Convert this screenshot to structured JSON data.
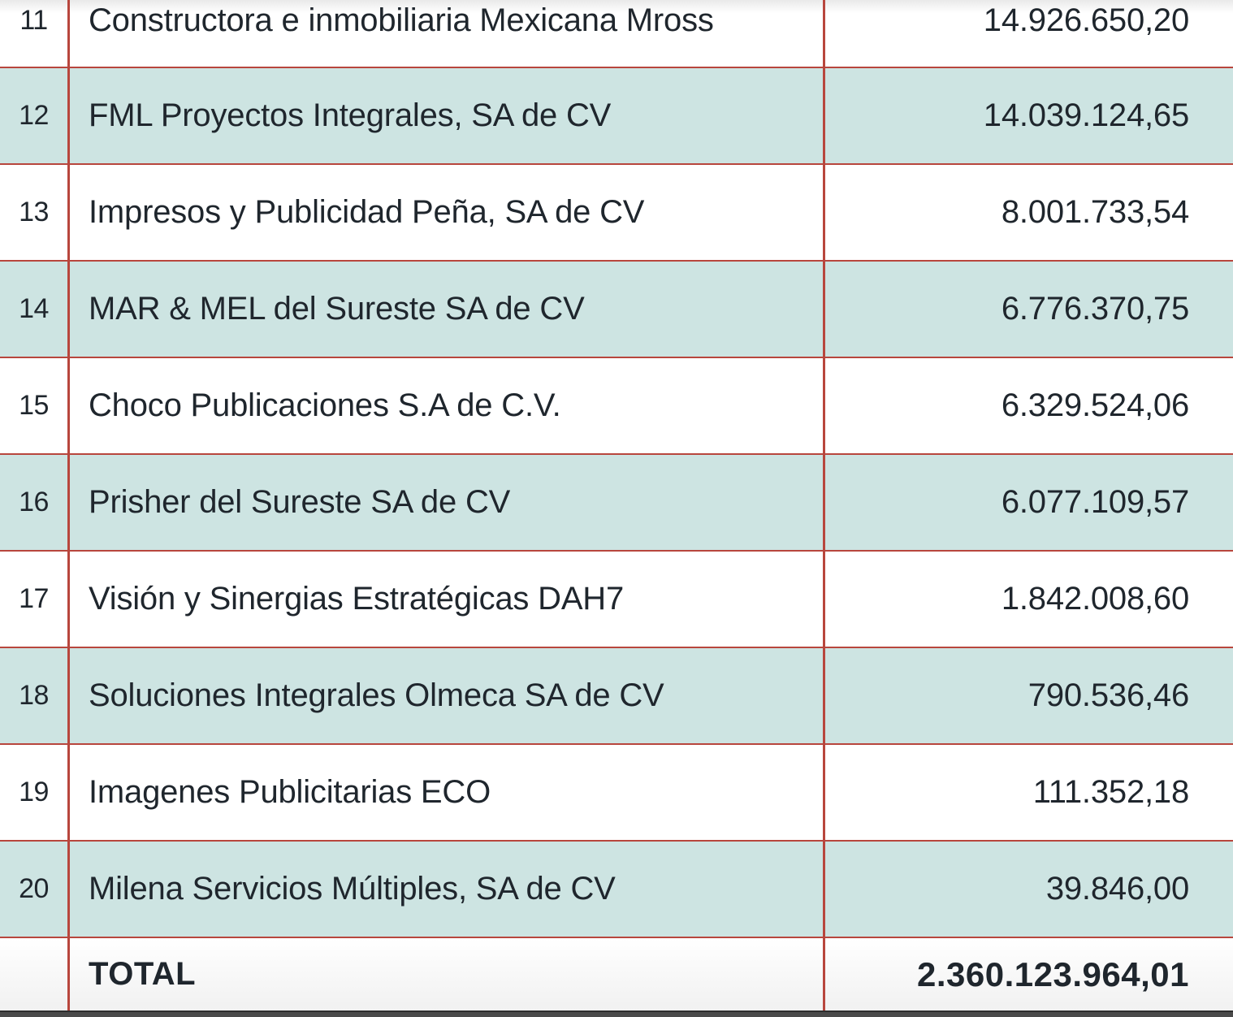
{
  "table": {
    "rows": [
      {
        "num": "11",
        "name": "Constructora e inmobiliaria Mexicana Mross",
        "amount": "14.926.650,20"
      },
      {
        "num": "12",
        "name": "FML Proyectos Integrales, SA de CV",
        "amount": "14.039.124,65"
      },
      {
        "num": "13",
        "name": "Impresos y Publicidad Peña, SA de CV",
        "amount": "8.001.733,54"
      },
      {
        "num": "14",
        "name": "MAR & MEL del Sureste SA de CV",
        "amount": "6.776.370,75"
      },
      {
        "num": "15",
        "name": "Choco Publicaciones S.A de C.V.",
        "amount": "6.329.524,06"
      },
      {
        "num": "16",
        "name": "Prisher del Sureste SA de CV",
        "amount": "6.077.109,57"
      },
      {
        "num": "17",
        "name": "Visión y Sinergias Estratégicas DAH7",
        "amount": "1.842.008,60"
      },
      {
        "num": "18",
        "name": "Soluciones Integrales Olmeca SA de CV",
        "amount": "790.536,46"
      },
      {
        "num": "19",
        "name": "Imagenes Publicitarias ECO",
        "amount": "111.352,18"
      },
      {
        "num": "20",
        "name": "Milena Servicios Múltiples, SA de CV",
        "amount": "39.846,00"
      }
    ],
    "total": {
      "label": "TOTAL",
      "amount": "2.360.123.964,01"
    }
  },
  "colors": {
    "row_alt": "#cde4e2",
    "border": "#b8463d",
    "text": "#1f262d",
    "bottom_strip": "#4a4a4a"
  }
}
